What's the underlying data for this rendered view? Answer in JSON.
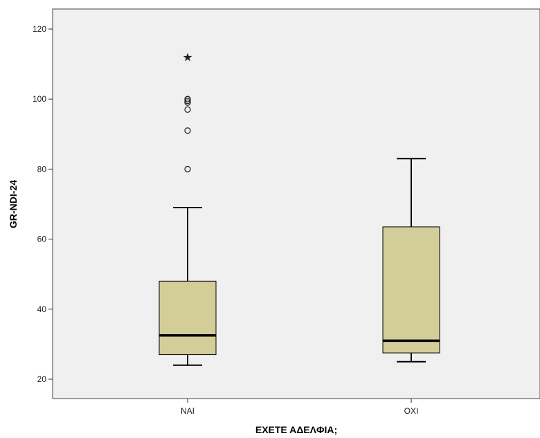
{
  "chart_data": {
    "type": "boxplot",
    "xlabel": "ΕΧΕΤΕ ΑΔΕΛΦΙΑ;",
    "ylabel": "GR-NDI-24",
    "ylim": [
      15,
      122
    ],
    "yticks": [
      20,
      40,
      60,
      80,
      100,
      120
    ],
    "ytick_labels": [
      "20",
      "40",
      "60",
      "80",
      "100",
      "120"
    ],
    "categories": [
      "NAI",
      "OXI"
    ],
    "boxes": [
      {
        "category": "NAI",
        "whisker_low": 24,
        "q1": 27,
        "median": 32.5,
        "q3": 48,
        "whisker_high": 69,
        "outliers": [
          80,
          91,
          97,
          99,
          99.5,
          100
        ],
        "extremes": [
          112
        ]
      },
      {
        "category": "OXI",
        "whisker_low": 25,
        "q1": 27.5,
        "median": 31,
        "q3": 63.5,
        "whisker_high": 83,
        "outliers": [],
        "extremes": []
      }
    ],
    "colors": {
      "plot_background": "#f0f0f0",
      "box_fill": "#d3cd9a",
      "line": "#000000"
    }
  }
}
